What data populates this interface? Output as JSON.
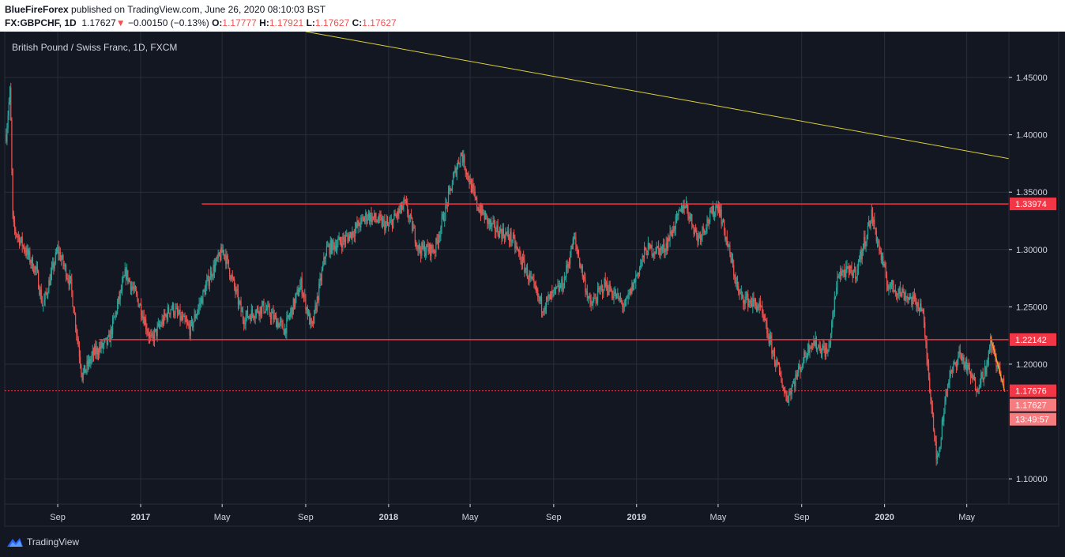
{
  "header": {
    "author": "BlueFireForex",
    "published": " published on TradingView.com, June 26, 2020 08:10:03 BST",
    "symbol": "FX:GBPCHF, 1D",
    "price": "1.17627",
    "arrow": "▼",
    "change": "−0.00150 (−0.13%)",
    "o_label": "O:",
    "o": "1.17777",
    "h_label": "H:",
    "h": "1.17921",
    "l_label": "L:",
    "l": "1.17627",
    "c_label": "C:",
    "c": "1.17627"
  },
  "footer": {
    "brand": "TradingView"
  },
  "chart_data": {
    "type": "candlestick",
    "title": "British Pound / Swiss Franc, 1D, FXCM",
    "x_ticks": [
      "Sep",
      "2017",
      "May",
      "Sep",
      "2018",
      "May",
      "Sep",
      "2019",
      "May",
      "Sep",
      "2020",
      "May"
    ],
    "x_tick_dates": [
      "2016-09-01",
      "2017-01-01",
      "2017-05-01",
      "2017-09-01",
      "2018-01-01",
      "2018-05-01",
      "2018-09-01",
      "2019-01-01",
      "2019-05-01",
      "2019-09-01",
      "2020-01-01",
      "2020-05-01"
    ],
    "y_ticks": [
      "1.45000",
      "1.40000",
      "1.35000",
      "1.30000",
      "1.25000",
      "1.20000",
      "1.10000"
    ],
    "y_range": [
      1.078,
      1.49
    ],
    "price_path": [
      [
        "2016-06-17",
        1.4
      ],
      [
        "2016-06-23",
        1.44
      ],
      [
        "2016-06-27",
        1.32
      ],
      [
        "2016-07-15",
        1.3
      ],
      [
        "2016-08-01",
        1.28
      ],
      [
        "2016-08-10",
        1.25
      ],
      [
        "2016-09-01",
        1.3
      ],
      [
        "2016-09-20",
        1.27
      ],
      [
        "2016-10-07",
        1.19
      ],
      [
        "2016-10-25",
        1.21
      ],
      [
        "2016-11-15",
        1.22
      ],
      [
        "2016-12-10",
        1.28
      ],
      [
        "2017-01-01",
        1.25
      ],
      [
        "2017-01-16",
        1.22
      ],
      [
        "2017-02-15",
        1.25
      ],
      [
        "2017-03-15",
        1.23
      ],
      [
        "2017-04-15",
        1.28
      ],
      [
        "2017-05-03",
        1.3
      ],
      [
        "2017-06-01",
        1.24
      ],
      [
        "2017-07-01",
        1.25
      ],
      [
        "2017-08-01",
        1.23
      ],
      [
        "2017-08-25",
        1.27
      ],
      [
        "2017-09-10",
        1.23
      ],
      [
        "2017-10-01",
        1.3
      ],
      [
        "2017-11-01",
        1.31
      ],
      [
        "2017-12-01",
        1.33
      ],
      [
        "2018-01-01",
        1.32
      ],
      [
        "2018-01-25",
        1.34
      ],
      [
        "2018-02-15",
        1.3
      ],
      [
        "2018-03-10",
        1.3
      ],
      [
        "2018-04-10",
        1.37
      ],
      [
        "2018-04-18",
        1.384
      ],
      [
        "2018-05-10",
        1.34
      ],
      [
        "2018-06-01",
        1.32
      ],
      [
        "2018-07-01",
        1.31
      ],
      [
        "2018-08-15",
        1.25
      ],
      [
        "2018-09-15",
        1.27
      ],
      [
        "2018-10-01",
        1.31
      ],
      [
        "2018-10-25",
        1.25
      ],
      [
        "2018-11-15",
        1.27
      ],
      [
        "2018-12-15",
        1.25
      ],
      [
        "2019-01-15",
        1.3
      ],
      [
        "2019-02-10",
        1.3
      ],
      [
        "2019-03-13",
        1.341
      ],
      [
        "2019-04-01",
        1.31
      ],
      [
        "2019-05-01",
        1.34
      ],
      [
        "2019-06-01",
        1.26
      ],
      [
        "2019-07-01",
        1.25
      ],
      [
        "2019-08-10",
        1.17
      ],
      [
        "2019-09-15",
        1.22
      ],
      [
        "2019-10-10",
        1.21
      ],
      [
        "2019-10-25",
        1.28
      ],
      [
        "2019-11-20",
        1.28
      ],
      [
        "2019-12-13",
        1.33
      ],
      [
        "2020-01-05",
        1.27
      ],
      [
        "2020-02-01",
        1.26
      ],
      [
        "2020-02-25",
        1.25
      ],
      [
        "2020-03-19",
        1.112
      ],
      [
        "2020-04-01",
        1.18
      ],
      [
        "2020-04-20",
        1.21
      ],
      [
        "2020-05-15",
        1.18
      ],
      [
        "2020-06-01",
        1.2
      ],
      [
        "2020-06-05",
        1.22
      ],
      [
        "2020-06-26",
        1.176
      ]
    ],
    "horizontal_levels": [
      {
        "value": 1.33974,
        "label": "1.33974",
        "start": "2017-04-01"
      },
      {
        "value": 1.22142,
        "label": "1.22142",
        "start": "2016-11-01"
      },
      {
        "value": 1.17676,
        "label": "1.17676",
        "start": "2016-06-15",
        "dashed": true
      }
    ],
    "trendline": {
      "from": [
        "2017-09-01",
        1.49
      ],
      "to": [
        "2020-07-23",
        1.377
      ]
    },
    "wedge_lines": [
      [
        [
          "2020-06-05",
          1.224
        ],
        [
          "2020-06-26",
          1.176
        ]
      ],
      [
        [
          "2020-06-05",
          1.224
        ],
        [
          "2020-06-20",
          1.19
        ]
      ]
    ],
    "last_price": "1.17627",
    "countdown": "13:49:57",
    "colors": {
      "background": "#131722",
      "grid": "#2a2e39",
      "up": "#26a69a",
      "down": "#ef5350",
      "level_line": "#f23645",
      "trendline": "#dcd03a",
      "wedge": "#f5a623",
      "axis_text": "#d1d4dc"
    }
  }
}
